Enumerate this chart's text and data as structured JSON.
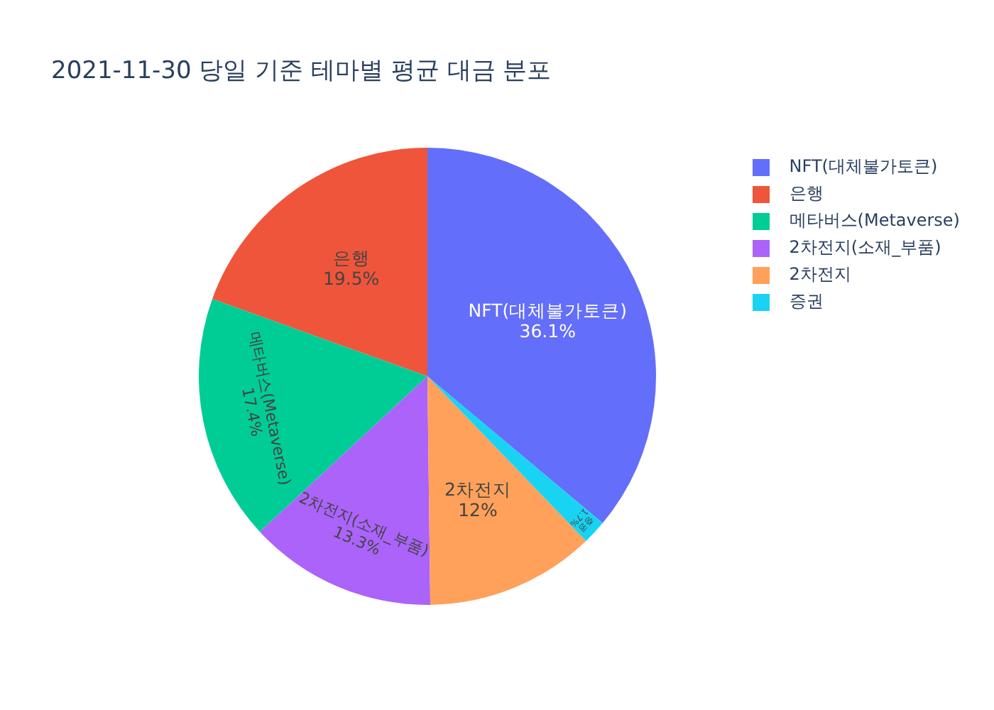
{
  "chart_data": {
    "type": "pie",
    "title": "2021-11-30 당일 기준 테마별 평균 대금 분포",
    "categories": [
      "NFT(대체불가토큰)",
      "은행",
      "메타버스(Metaverse)",
      "2차전지(소재_부품)",
      "2차전지",
      "증권"
    ],
    "values": [
      36.1,
      19.5,
      17.4,
      13.3,
      12,
      1.7
    ],
    "colors": [
      "#636efa",
      "#ef553b",
      "#00cc96",
      "#ab63fa",
      "#ffa15a",
      "#19d3f3"
    ],
    "value_labels": [
      "36.1%",
      "19.5%",
      "17.4%",
      "13.3%",
      "12%",
      "1.7%"
    ],
    "legend": "top right"
  }
}
